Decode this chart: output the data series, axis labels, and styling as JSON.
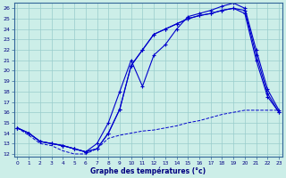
{
  "title": "Graphe des températures (°c)",
  "bg_color": "#cceee8",
  "grid_color": "#99cccc",
  "line_color": "#0000cc",
  "x_ticks": [
    0,
    1,
    2,
    3,
    4,
    5,
    6,
    7,
    8,
    9,
    10,
    11,
    12,
    13,
    14,
    15,
    16,
    17,
    18,
    19,
    20,
    21,
    22,
    23
  ],
  "y_ticks": [
    12,
    13,
    14,
    15,
    16,
    17,
    18,
    19,
    20,
    21,
    22,
    23,
    24,
    25,
    26
  ],
  "xlim": [
    -0.3,
    23.3
  ],
  "ylim": [
    11.7,
    26.5
  ],
  "series1": [
    14.5,
    14.0,
    13.2,
    13.0,
    12.8,
    12.5,
    12.2,
    12.5,
    14.0,
    16.3,
    20.5,
    22.0,
    23.5,
    24.0,
    24.5,
    25.0,
    25.3,
    25.5,
    25.8,
    26.0,
    25.8,
    21.5,
    17.8,
    16.0
  ],
  "series2": [
    14.5,
    14.0,
    13.2,
    13.0,
    12.8,
    12.5,
    12.2,
    13.0,
    15.0,
    18.0,
    21.0,
    18.5,
    21.5,
    22.5,
    24.0,
    25.2,
    25.5,
    25.8,
    26.2,
    26.5,
    26.0,
    22.0,
    18.2,
    16.2
  ],
  "series3": [
    14.5,
    14.0,
    13.2,
    13.0,
    12.8,
    12.5,
    12.2,
    12.5,
    14.0,
    16.3,
    20.5,
    22.0,
    23.5,
    24.0,
    24.5,
    25.0,
    25.3,
    25.5,
    25.8,
    26.0,
    25.5,
    21.0,
    17.5,
    16.0
  ],
  "series_min": [
    14.5,
    13.8,
    13.0,
    12.8,
    12.3,
    12.0,
    12.0,
    12.5,
    13.5,
    13.8,
    14.0,
    14.2,
    14.3,
    14.5,
    14.7,
    15.0,
    15.2,
    15.5,
    15.8,
    16.0,
    16.2,
    16.2,
    16.2,
    16.2
  ]
}
